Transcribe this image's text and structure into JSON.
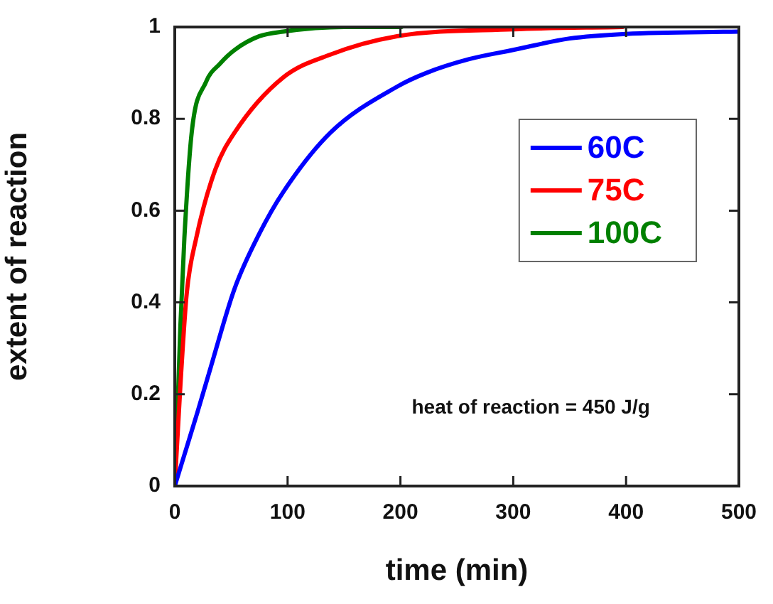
{
  "chart_data": {
    "type": "line",
    "xlabel": "time (min)",
    "ylabel": "extent of reaction",
    "xlim": [
      0,
      500
    ],
    "xticks": [
      0,
      100,
      200,
      300,
      400,
      500
    ],
    "ylim": [
      0,
      1
    ],
    "yticks": [
      0,
      0.2,
      0.4,
      0.6,
      0.8,
      1
    ],
    "grid": false,
    "legend": "top right",
    "marker": "none",
    "line_style": "solid",
    "annotations": [
      "heat of reaction = 450 J/g"
    ],
    "series": [
      {
        "name": "60C",
        "color": "#0000ff",
        "x": [
          0,
          10,
          20,
          32,
          53,
          75,
          96,
          138,
          197,
          223,
          261,
          300,
          350,
          400,
          500
        ],
        "values": [
          0,
          0.08,
          0.16,
          0.26,
          0.43,
          0.55,
          0.64,
          0.77,
          0.87,
          0.9,
          0.93,
          0.95,
          0.975,
          0.985,
          0.99
        ]
      },
      {
        "name": "75C",
        "color": "#ff0000",
        "x": [
          0,
          5,
          10.6,
          19,
          36,
          53,
          96,
          138,
          197,
          300,
          397
        ],
        "values": [
          0,
          0.22,
          0.42,
          0.54,
          0.69,
          0.77,
          0.89,
          0.94,
          0.98,
          0.995,
          1
        ]
      },
      {
        "name": "100C",
        "color": "#008000",
        "x": [
          0,
          2,
          5,
          8.5,
          15,
          27.6,
          40,
          53,
          75,
          96,
          150,
          201
        ],
        "values": [
          0,
          0.13,
          0.35,
          0.54,
          0.77,
          0.88,
          0.92,
          0.95,
          0.98,
          0.99,
          1,
          1
        ]
      }
    ]
  }
}
